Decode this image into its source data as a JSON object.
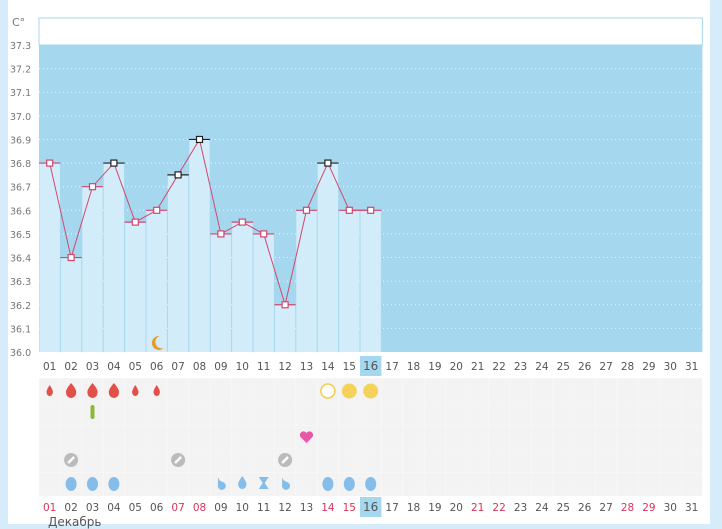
{
  "unit_label": "C°",
  "month_label": "Декабрь",
  "today": 16,
  "colors": {
    "plot_bg": "#a5d8ef",
    "bar": "#d3ecf9",
    "line": "#d0476e",
    "marker_normal": "#d0476e",
    "marker_flag": "#222222",
    "weekend": "#d9345a",
    "today_bg": "#a5d8ef"
  },
  "chart_data": {
    "type": "line",
    "title": "",
    "ylabel": "C°",
    "ylim": [
      36.0,
      37.3
    ],
    "y_ticks": [
      "36.0",
      "36.1",
      "36.2",
      "36.3",
      "36.4",
      "36.5",
      "36.6",
      "36.7",
      "36.8",
      "36.9",
      "37.0",
      "37.1",
      "37.2",
      "37.3"
    ],
    "days": [
      "01",
      "02",
      "03",
      "04",
      "05",
      "06",
      "07",
      "08",
      "09",
      "10",
      "11",
      "12",
      "13",
      "14",
      "15",
      "16",
      "17",
      "18",
      "19",
      "20",
      "21",
      "22",
      "23",
      "24",
      "25",
      "26",
      "27",
      "28",
      "29",
      "30",
      "31"
    ],
    "temperatures": [
      36.8,
      36.4,
      36.7,
      36.8,
      36.55,
      36.6,
      36.75,
      36.9,
      36.5,
      36.55,
      36.5,
      36.2,
      36.6,
      36.8,
      36.6,
      36.6
    ],
    "flagged_days": [
      4,
      7,
      8,
      14
    ],
    "moon_day": 6
  },
  "weekend_days": [
    1,
    7,
    8,
    14,
    15,
    21,
    22,
    28,
    29
  ],
  "icon_rows": [
    {
      "name": "bleeding",
      "items": [
        {
          "day": 1,
          "icon": "drop-small"
        },
        {
          "day": 2,
          "icon": "drop-large"
        },
        {
          "day": 3,
          "icon": "drop-large"
        },
        {
          "day": 4,
          "icon": "drop-large"
        },
        {
          "day": 5,
          "icon": "drop-small"
        },
        {
          "day": 6,
          "icon": "drop-small"
        },
        {
          "day": 14,
          "icon": "circle-empty"
        },
        {
          "day": 15,
          "icon": "circle-full"
        },
        {
          "day": 16,
          "icon": "circle-full"
        }
      ]
    },
    {
      "name": "test",
      "items": [
        {
          "day": 3,
          "icon": "test-strip"
        }
      ]
    },
    {
      "name": "intercourse",
      "items": [
        {
          "day": 13,
          "icon": "heart"
        }
      ]
    },
    {
      "name": "pill",
      "items": [
        {
          "day": 2,
          "icon": "pill"
        },
        {
          "day": 7,
          "icon": "pill"
        },
        {
          "day": 12,
          "icon": "pill"
        }
      ]
    },
    {
      "name": "mucus",
      "items": [
        {
          "day": 2,
          "icon": "egg"
        },
        {
          "day": 3,
          "icon": "egg"
        },
        {
          "day": 4,
          "icon": "egg"
        },
        {
          "day": 9,
          "icon": "curl"
        },
        {
          "day": 10,
          "icon": "drop"
        },
        {
          "day": 11,
          "icon": "hourglass"
        },
        {
          "day": 12,
          "icon": "curl"
        },
        {
          "day": 14,
          "icon": "egg"
        },
        {
          "day": 15,
          "icon": "egg"
        },
        {
          "day": 16,
          "icon": "egg"
        }
      ]
    }
  ]
}
